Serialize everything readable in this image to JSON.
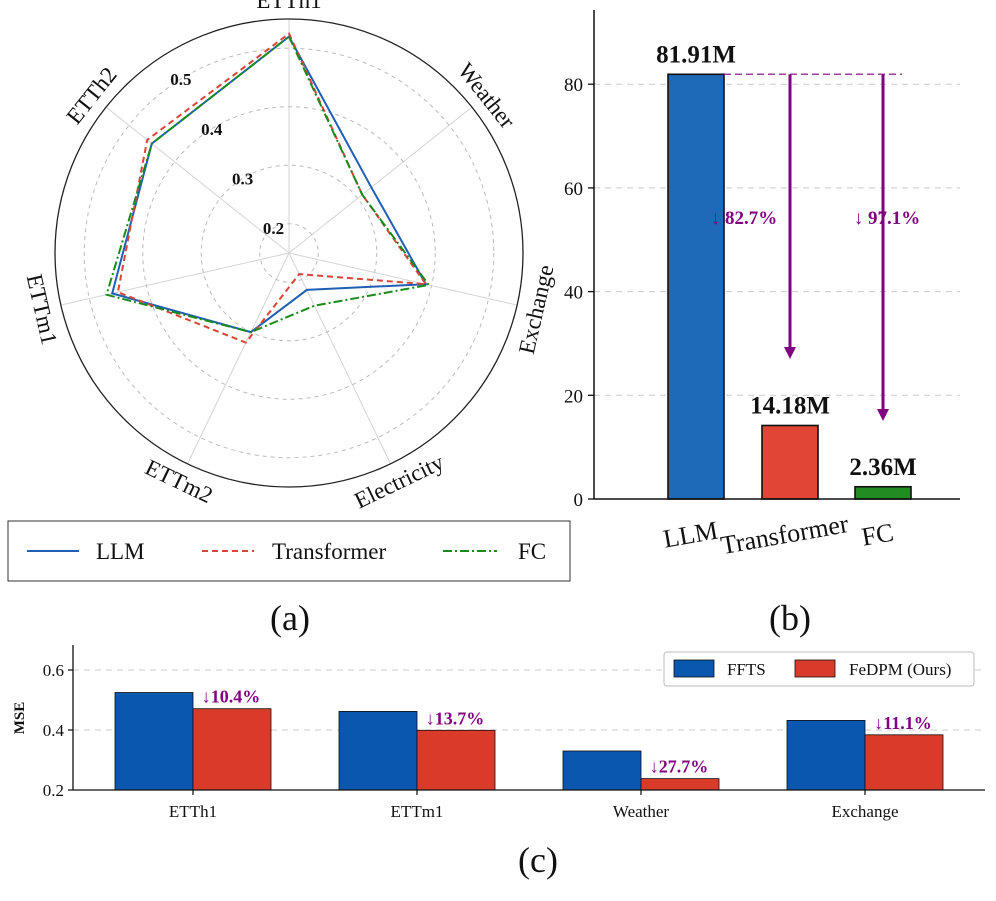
{
  "colors": {
    "llm": "#1f5fb5",
    "transformer": "#d94535",
    "fc": "#1a8a1a",
    "bar_llm": "#1f6ab8",
    "bar_transformer": "#e04535",
    "bar_fc": "#228b22",
    "fedpm": "#d93a2a",
    "ffts": "#0a57b0",
    "annotation": "#800080"
  },
  "chart_data": [
    {
      "panel": "(a)",
      "type": "radar",
      "axes": [
        "ETTh1",
        "Weather",
        "Exchange",
        "Electricity",
        "ETTm2",
        "ETTm1",
        "ETTh2"
      ],
      "rticks": [
        0.2,
        0.3,
        0.4,
        0.5
      ],
      "rlim": [
        0.15,
        0.55
      ],
      "series": [
        {
          "name": "LLM",
          "style": "solid",
          "values": [
            0.52,
            0.33,
            0.39,
            0.22,
            0.3,
            0.46,
            0.45
          ]
        },
        {
          "name": "Transformer",
          "style": "dashed",
          "values": [
            0.525,
            0.31,
            0.39,
            0.19,
            0.32,
            0.45,
            0.46
          ]
        },
        {
          "name": "FC",
          "style": "dashdot",
          "values": [
            0.52,
            0.31,
            0.395,
            0.25,
            0.3,
            0.47,
            0.45
          ]
        }
      ],
      "legend": [
        "LLM",
        "Transformer",
        "FC"
      ],
      "label": "(a)"
    },
    {
      "panel": "(b)",
      "type": "bar",
      "categories": [
        "LLM",
        "Transformer",
        "FC"
      ],
      "values": [
        81.91,
        14.18,
        2.36
      ],
      "value_labels": [
        "81.91M",
        "14.18M",
        "2.36M"
      ],
      "yticks": [
        0,
        20,
        40,
        60,
        80
      ],
      "ylim": [
        0,
        95
      ],
      "annotations": [
        {
          "text": "↓ 82.7%",
          "from": 81.91,
          "to": 14.18
        },
        {
          "text": "↓ 97.1%",
          "from": 81.91,
          "to": 2.36
        }
      ],
      "label": "(b)"
    },
    {
      "panel": "(c)",
      "type": "bar",
      "categories": [
        "ETTh1",
        "ETTm1",
        "Weather",
        "Exchange"
      ],
      "series": [
        {
          "name": "FFTS",
          "values": [
            0.525,
            0.462,
            0.33,
            0.432
          ]
        },
        {
          "name": "FeDPM (Ours)",
          "values": [
            0.471,
            0.399,
            0.238,
            0.384
          ]
        }
      ],
      "improvements": [
        "↓10.4%",
        "↓13.7%",
        "↓27.7%",
        "↓11.1%"
      ],
      "ylabel": "MSE",
      "yticks": [
        0.2,
        0.4,
        0.6
      ],
      "ylim": [
        0.2,
        0.69
      ],
      "legend": [
        "FFTS",
        "FeDPM (Ours)"
      ],
      "label": "(c)"
    }
  ]
}
